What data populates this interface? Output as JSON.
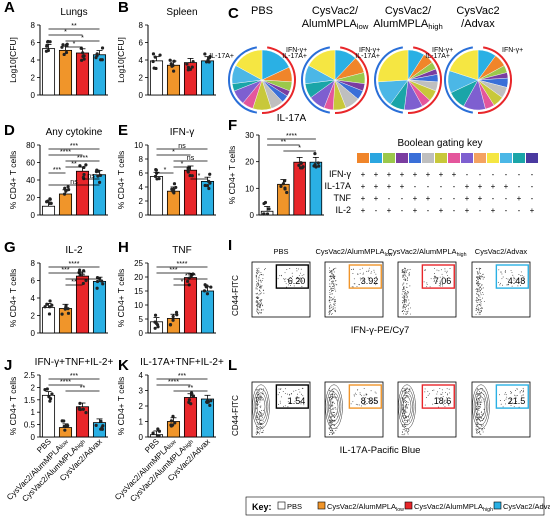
{
  "colors": {
    "pbs": "#ffffff",
    "alum_low": "#f0952a",
    "alum_high": "#e8262a",
    "advax": "#2ab0e4"
  },
  "group_labels": [
    "PBS",
    "CysVac2/AlumMPLAlow",
    "CysVac2/AlumMPLAhigh",
    "CysVac2/Advax"
  ],
  "key": {
    "title": "Key:",
    "items": [
      "PBS",
      "CysVac2/AlumMPLA",
      "CysVac2/AlumMPLA",
      "CysVac2/Advax"
    ],
    "subs": [
      "",
      "low",
      "high",
      ""
    ]
  },
  "pie_titles": [
    {
      "lines": [
        "PBS"
      ],
      "subs": [
        ""
      ]
    },
    {
      "lines": [
        "CysVac2/",
        "AlumMPLA"
      ],
      "subs": [
        "",
        "low"
      ]
    },
    {
      "lines": [
        "CysVac2/",
        "AlumMPLA"
      ],
      "subs": [
        "",
        "high"
      ]
    },
    {
      "lines": [
        "CysVac2",
        "/Advax"
      ],
      "subs": [
        "",
        ""
      ]
    }
  ],
  "arc_labels": {
    "il17": "IL-17A+",
    "ifng": "IFN-γ+"
  },
  "boolean_key": {
    "title": "Boolean gating key",
    "colors": [
      "#f0852a",
      "#2ba6e0",
      "#9bc84b",
      "#7a3da0",
      "#3a6fd8",
      "#bfbfbf",
      "#c8c83a",
      "#e4569c",
      "#7e5fd0",
      "#f4a261",
      "#f5e642",
      "#4bb7e6",
      "#1aa5a8",
      "#4a3aa0"
    ],
    "rows": [
      {
        "name": "IFN-γ",
        "marks": [
          "+",
          "+",
          "+",
          "+",
          "+",
          "+",
          "+",
          "+",
          "-",
          "-",
          "-",
          "-",
          "-",
          "-"
        ]
      },
      {
        "name": "IL-17A",
        "marks": [
          "+",
          "+",
          "+",
          "+",
          "-",
          "-",
          "-",
          "-",
          "+",
          "+",
          "+",
          "+",
          "-",
          "-"
        ]
      },
      {
        "name": "TNF",
        "marks": [
          "+",
          "+",
          "-",
          "-",
          "+",
          "+",
          "-",
          "-",
          "+",
          "+",
          "-",
          "-",
          "+",
          "-"
        ]
      },
      {
        "name": "IL-2",
        "marks": [
          "+",
          "-",
          "+",
          "-",
          "+",
          "-",
          "+",
          "-",
          "+",
          "-",
          "+",
          "-",
          "-",
          "+"
        ]
      }
    ]
  },
  "flow": {
    "top_ylabel": "CD44-FITC",
    "top_xlabel": "IFN-γ-PE/Cy7",
    "top_values": [
      "6.20",
      "3.92",
      "7.06",
      "4.48"
    ],
    "bottom_ylabel": "CD44-FITC",
    "bottom_xlabel": "IL-17A-Pacific Blue",
    "bottom_values": [
      "1.54",
      "8.85",
      "18.6",
      "21.5"
    ],
    "titles": [
      "PBS",
      "CysVac2/AlumMPLA",
      "CysVac2/AlumMPLA",
      "CysVac2/Advax"
    ],
    "subs": [
      "",
      "low",
      "high",
      ""
    ]
  },
  "chart_data": [
    {
      "id": "A",
      "letter": "A",
      "type": "bar",
      "title": "Lungs",
      "ylabel": "Log10[CFU]",
      "ylim": [
        0,
        8
      ],
      "yticks": [
        0,
        2,
        4,
        6,
        8
      ],
      "values": [
        5.3,
        5.1,
        4.8,
        4.6
      ],
      "sig": [
        "**",
        "*",
        "*",
        "*"
      ],
      "show_x": false
    },
    {
      "id": "B",
      "letter": "B",
      "type": "bar",
      "title": "Spleen",
      "ylabel": "Log10[CFU]",
      "ylim": [
        0,
        8
      ],
      "yticks": [
        0,
        2,
        4,
        6,
        8
      ],
      "values": [
        3.9,
        3.4,
        3.7,
        3.9
      ],
      "sig": [],
      "show_x": false
    },
    {
      "id": "D",
      "letter": "D",
      "type": "bar",
      "title": "Any cytokine",
      "ylabel": "% CD4+ T cells",
      "ylim": [
        0,
        80
      ],
      "yticks": [
        0,
        20,
        40,
        60,
        80
      ],
      "values": [
        10,
        24,
        50,
        46
      ],
      "sig": [
        "***",
        "****",
        "****",
        "**",
        "***",
        "ns",
        "ns"
      ],
      "show_x": false
    },
    {
      "id": "E",
      "letter": "E",
      "type": "bar",
      "title": "IFN-γ",
      "ylabel": "% CD4+ T cells",
      "ylim": [
        0,
        10
      ],
      "yticks": [
        0,
        2,
        4,
        6,
        8,
        10
      ],
      "values": [
        5.5,
        3.4,
        6.4,
        4.8
      ],
      "sig": [
        "ns",
        "*",
        "ns",
        "*",
        "*",
        "*"
      ],
      "show_x": false
    },
    {
      "id": "F",
      "letter": "F",
      "type": "bar",
      "title": "IL-17A",
      "ylabel": "% CD4+ T cells",
      "ylim": [
        0,
        30
      ],
      "yticks": [
        0,
        10,
        20,
        30
      ],
      "values": [
        1.4,
        11.5,
        19.8,
        19.8
      ],
      "sig": [
        "****",
        "**",
        "*"
      ],
      "show_x": false
    },
    {
      "id": "G",
      "letter": "G",
      "type": "bar",
      "title": "IL-2",
      "ylabel": "% CD4+ T cells",
      "ylim": [
        0,
        8
      ],
      "yticks": [
        0,
        2,
        4,
        6,
        8
      ],
      "values": [
        2.9,
        2.8,
        6.5,
        5.9
      ],
      "sig": [
        "****",
        "***",
        "**",
        "**"
      ],
      "show_x": false
    },
    {
      "id": "H",
      "letter": "H",
      "type": "bar",
      "title": "TNF",
      "ylabel": "% CD4+ T cells",
      "ylim": [
        0,
        25
      ],
      "yticks": [
        0,
        5,
        10,
        15,
        20,
        25
      ],
      "values": [
        4.0,
        5.2,
        19.8,
        15.0
      ],
      "sig": [
        "****",
        "***",
        "****",
        "*"
      ],
      "show_x": false
    },
    {
      "id": "J",
      "letter": "J",
      "type": "bar",
      "title": "IFN-γ+TNF+IL-2+",
      "ylabel": "% CD4+ T cells",
      "ylim": [
        0,
        2.5
      ],
      "yticks": [
        0,
        0.5,
        1.0,
        1.5,
        2.0,
        2.5
      ],
      "values": [
        1.68,
        0.38,
        1.22,
        0.58
      ],
      "sig": [
        "***",
        "****",
        "**"
      ],
      "show_x": true
    },
    {
      "id": "K",
      "letter": "K",
      "type": "bar",
      "title": "IL-17A+TNF+IL-2+",
      "ylabel": "% CD4+ T cells",
      "ylim": [
        0,
        4
      ],
      "yticks": [
        0,
        1,
        2,
        3,
        4
      ],
      "values": [
        0.15,
        1.0,
        2.55,
        2.45
      ],
      "sig": [
        "***",
        "****",
        "**"
      ],
      "show_x": true
    },
    {
      "id": "C",
      "letter": "C",
      "type": "pie",
      "pies": [
        {
          "slices": [
            18,
            8,
            5,
            3,
            4,
            7,
            10,
            6,
            8,
            4,
            10,
            17
          ]
        },
        {
          "slices": [
            12,
            9,
            6,
            4,
            5,
            8,
            7,
            5,
            9,
            8,
            10,
            17
          ]
        },
        {
          "slices": [
            9,
            6,
            4,
            3,
            4,
            5,
            6,
            5,
            10,
            8,
            14,
            26
          ]
        },
        {
          "slices": [
            10,
            7,
            4,
            3,
            5,
            6,
            6,
            5,
            12,
            10,
            12,
            20
          ]
        }
      ],
      "slice_colors": [
        "#2ab0e4",
        "#f0852a",
        "#9bc84b",
        "#7a3da0",
        "#3a6fd8",
        "#bfbfbf",
        "#c8c83a",
        "#e4569c",
        "#7e5fd0",
        "#1aa5a8",
        "#4bb7e6",
        "#f5e642"
      ]
    }
  ]
}
